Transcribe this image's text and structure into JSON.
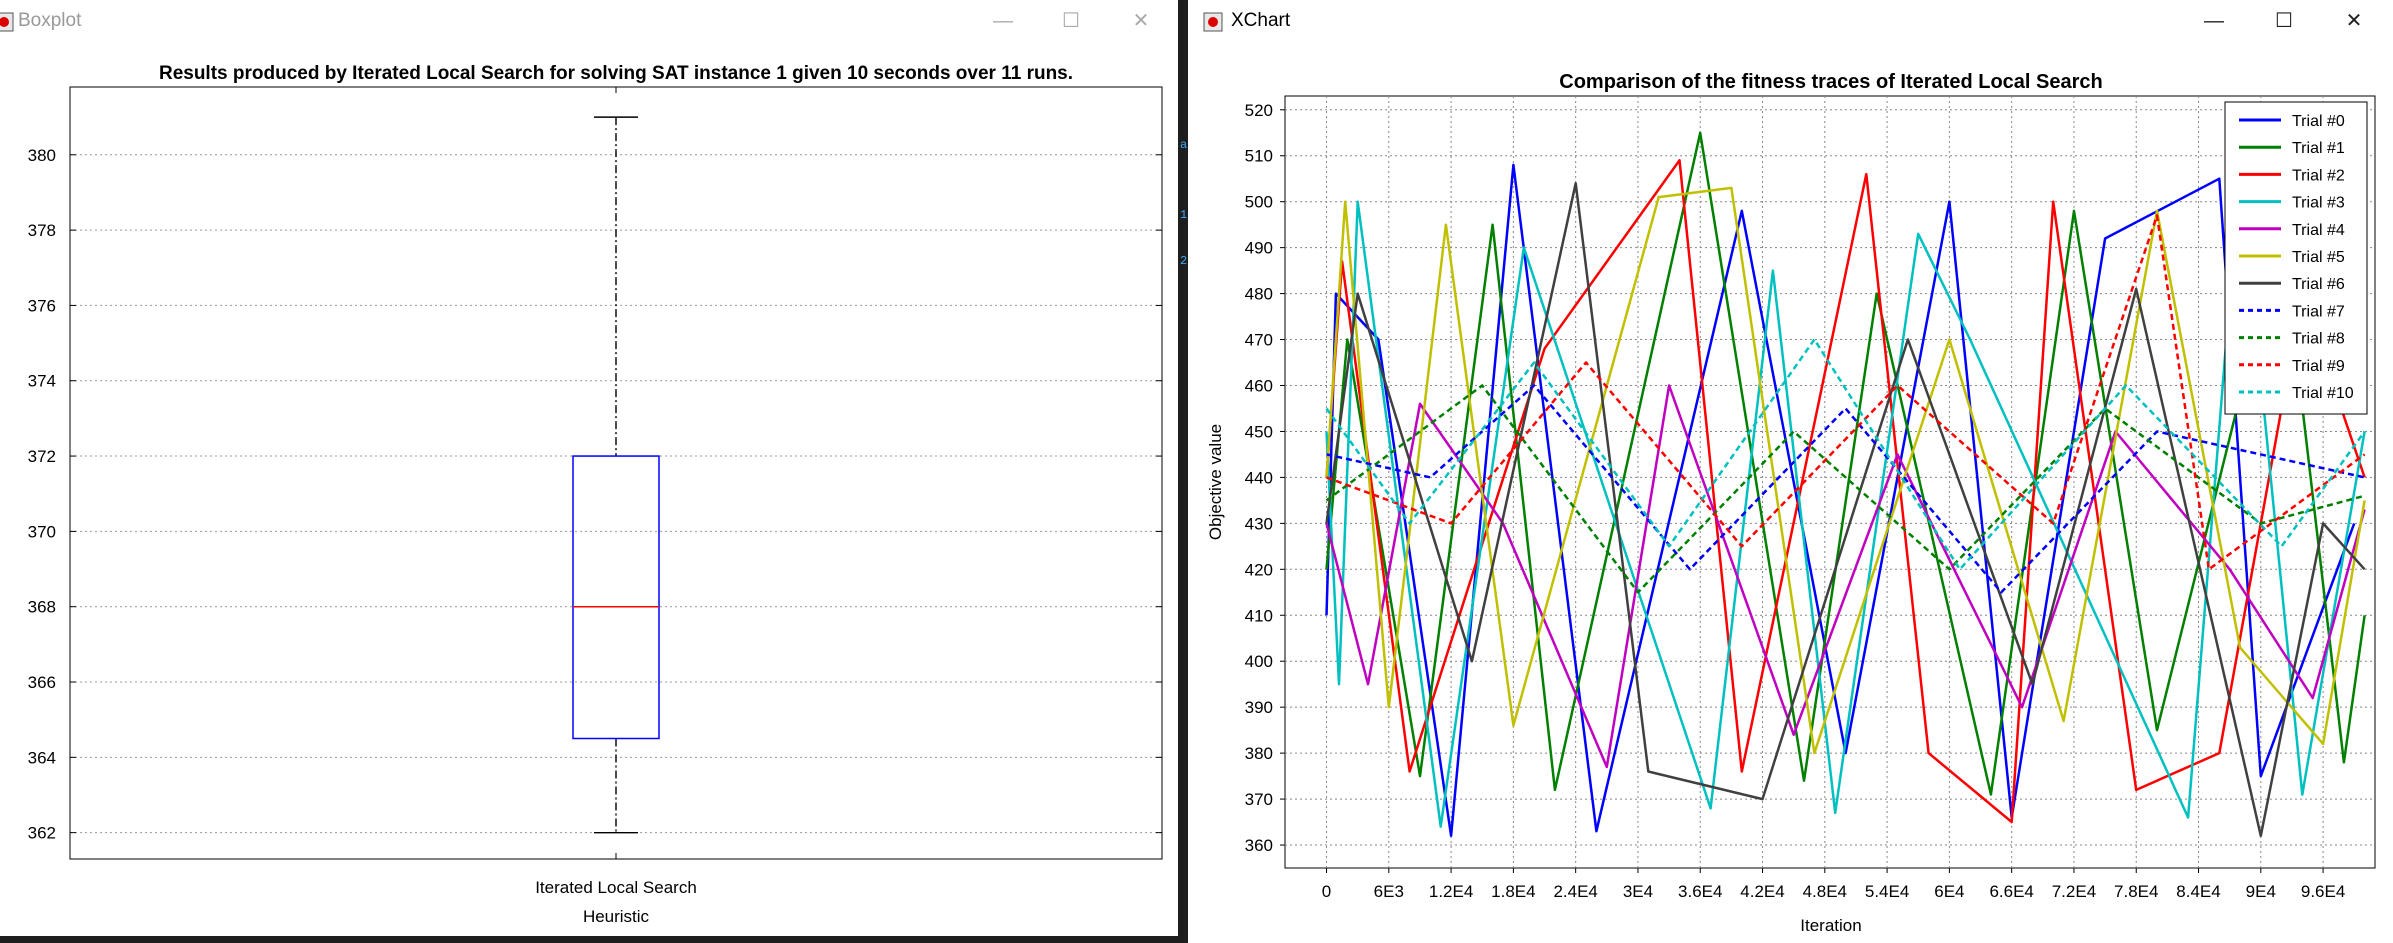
{
  "boxplot_window": {
    "title": "Boxplot",
    "controls": {
      "minimize": "—",
      "maximize": "☐",
      "close": "✕"
    }
  },
  "xchart_window": {
    "title": "XChart",
    "controls": {
      "minimize": "—",
      "maximize": "☐",
      "close": "✕"
    }
  },
  "gutter": [
    "a",
    "1",
    "2"
  ],
  "colors": {
    "trial0": "#0000ff",
    "trial1": "#008000",
    "trial2": "#ff0000",
    "trial3": "#00c0c0",
    "trial4": "#c000c0",
    "trial5": "#c0c000",
    "trial6": "#404040",
    "box": "#0000ff",
    "median": "#ff0000",
    "whisker": "#000000"
  },
  "chart_data": [
    {
      "type": "box",
      "title": "Results produced by Iterated Local Search for solving SAT instance 1 given 10 seconds over 11 runs.",
      "xlabel": "Heuristic",
      "ylabel": "",
      "categories": [
        "Iterated Local Search"
      ],
      "stats": {
        "min": 362,
        "q1": 364.5,
        "median": 368,
        "q3": 372,
        "max": 381
      },
      "ylim": [
        361.3,
        381.8
      ],
      "yticks": [
        "362",
        "364",
        "366",
        "368",
        "370",
        "372",
        "374",
        "376",
        "378",
        "380"
      ],
      "grid": true
    },
    {
      "type": "line",
      "title": "Comparison of the fitness traces of Iterated Local Search",
      "xlabel": "Iteration",
      "ylabel": "Objective value",
      "xlim": [
        -4000,
        101000
      ],
      "ylim": [
        355,
        523
      ],
      "xticks": [
        {
          "v": 0,
          "label": "0"
        },
        {
          "v": 6000,
          "label": "6E3"
        },
        {
          "v": 12000,
          "label": "1.2E4"
        },
        {
          "v": 18000,
          "label": "1.8E4"
        },
        {
          "v": 24000,
          "label": "2.4E4"
        },
        {
          "v": 30000,
          "label": "3E4"
        },
        {
          "v": 36000,
          "label": "3.6E4"
        },
        {
          "v": 42000,
          "label": "4.2E4"
        },
        {
          "v": 48000,
          "label": "4.8E4"
        },
        {
          "v": 54000,
          "label": "5.4E4"
        },
        {
          "v": 60000,
          "label": "6E4"
        },
        {
          "v": 66000,
          "label": "6.6E4"
        },
        {
          "v": 72000,
          "label": "7.2E4"
        },
        {
          "v": 78000,
          "label": "7.8E4"
        },
        {
          "v": 84000,
          "label": "8.4E4"
        },
        {
          "v": 90000,
          "label": "9E4"
        },
        {
          "v": 96000,
          "label": "9.6E4"
        }
      ],
      "yticks": [
        360,
        370,
        380,
        390,
        400,
        410,
        420,
        430,
        440,
        450,
        460,
        470,
        480,
        490,
        500,
        510,
        520
      ],
      "grid": true,
      "legend_position": "top-right",
      "series": [
        {
          "name": "Trial #0",
          "color": "#0000ff",
          "dash": false,
          "points": [
            [
              0,
              410
            ],
            [
              900,
              480
            ],
            [
              5000,
              470
            ],
            [
              12000,
              362
            ],
            [
              18000,
              508
            ],
            [
              26000,
              363
            ],
            [
              40000,
              498
            ],
            [
              50000,
              380
            ],
            [
              60000,
              500
            ],
            [
              66000,
              366
            ],
            [
              75000,
              492
            ],
            [
              86000,
              505
            ],
            [
              90000,
              375
            ],
            [
              99000,
              430
            ]
          ]
        },
        {
          "name": "Trial #1",
          "color": "#008000",
          "dash": false,
          "points": [
            [
              0,
              420
            ],
            [
              2000,
              470
            ],
            [
              9000,
              375
            ],
            [
              16000,
              495
            ],
            [
              22000,
              372
            ],
            [
              36000,
              515
            ],
            [
              46000,
              374
            ],
            [
              53000,
              480
            ],
            [
              64000,
              371
            ],
            [
              72000,
              498
            ],
            [
              80000,
              385
            ],
            [
              92000,
              494
            ],
            [
              98000,
              378
            ],
            [
              100000,
              410
            ]
          ]
        },
        {
          "name": "Trial #2",
          "color": "#ff0000",
          "dash": false,
          "points": [
            [
              0,
              440
            ],
            [
              1500,
              487
            ],
            [
              8000,
              376
            ],
            [
              21000,
              468
            ],
            [
              34000,
              509
            ],
            [
              40000,
              376
            ],
            [
              52000,
              506
            ],
            [
              58000,
              380
            ],
            [
              66000,
              365
            ],
            [
              70000,
              500
            ],
            [
              78000,
              372
            ],
            [
              86000,
              380
            ],
            [
              94000,
              480
            ],
            [
              100000,
              440
            ]
          ]
        },
        {
          "name": "Trial #3",
          "color": "#00c0c0",
          "dash": false,
          "points": [
            [
              0,
              450
            ],
            [
              1200,
              395
            ],
            [
              3000,
              500
            ],
            [
              11000,
              364
            ],
            [
              19000,
              490
            ],
            [
              37000,
              368
            ],
            [
              43000,
              485
            ],
            [
              49000,
              367
            ],
            [
              57000,
              493
            ],
            [
              62000,
              470
            ],
            [
              83000,
              366
            ],
            [
              88000,
              507
            ],
            [
              94000,
              371
            ],
            [
              100000,
              450
            ]
          ]
        },
        {
          "name": "Trial #4",
          "color": "#c000c0",
          "dash": false,
          "points": [
            [
              0,
              430
            ],
            [
              4000,
              395
            ],
            [
              9000,
              456
            ],
            [
              17000,
              430
            ],
            [
              27000,
              377
            ],
            [
              33000,
              460
            ],
            [
              45000,
              384
            ],
            [
              55000,
              445
            ],
            [
              67000,
              390
            ],
            [
              76000,
              450
            ],
            [
              87000,
              420
            ],
            [
              95000,
              392
            ],
            [
              100000,
              433
            ]
          ]
        },
        {
          "name": "Trial #5",
          "color": "#c0c000",
          "dash": false,
          "points": [
            [
              0,
              440
            ],
            [
              1800,
              500
            ],
            [
              6000,
              390
            ],
            [
              11500,
              495
            ],
            [
              18000,
              386
            ],
            [
              32000,
              501
            ],
            [
              39000,
              503
            ],
            [
              47000,
              380
            ],
            [
              60000,
              470
            ],
            [
              71000,
              387
            ],
            [
              80000,
              498
            ],
            [
              88000,
              403
            ],
            [
              96000,
              382
            ],
            [
              100000,
              435
            ]
          ]
        },
        {
          "name": "Trial #6",
          "color": "#404040",
          "dash": false,
          "points": [
            [
              0,
              430
            ],
            [
              3000,
              480
            ],
            [
              14000,
              400
            ],
            [
              24000,
              504
            ],
            [
              31000,
              376
            ],
            [
              42000,
              370
            ],
            [
              56000,
              470
            ],
            [
              68000,
              395
            ],
            [
              78000,
              481
            ],
            [
              90000,
              362
            ],
            [
              96000,
              430
            ],
            [
              100000,
              420
            ]
          ]
        },
        {
          "name": "Trial #7",
          "color": "#0000ff",
          "dash": true,
          "points": [
            [
              0,
              445
            ],
            [
              10000,
              440
            ],
            [
              20000,
              460
            ],
            [
              35000,
              420
            ],
            [
              50000,
              455
            ],
            [
              65000,
              415
            ],
            [
              80000,
              450
            ],
            [
              100000,
              440
            ]
          ]
        },
        {
          "name": "Trial #8",
          "color": "#008000",
          "dash": true,
          "points": [
            [
              0,
              435
            ],
            [
              15000,
              460
            ],
            [
              30000,
              415
            ],
            [
              45000,
              450
            ],
            [
              60000,
              420
            ],
            [
              75000,
              455
            ],
            [
              90000,
              430
            ],
            [
              100000,
              436
            ]
          ]
        },
        {
          "name": "Trial #9",
          "color": "#ff0000",
          "dash": true,
          "points": [
            [
              0,
              440
            ],
            [
              12000,
              430
            ],
            [
              25000,
              465
            ],
            [
              40000,
              425
            ],
            [
              55000,
              460
            ],
            [
              70000,
              430
            ],
            [
              80000,
              497
            ],
            [
              85000,
              420
            ],
            [
              100000,
              445
            ]
          ]
        },
        {
          "name": "Trial #10",
          "color": "#00c0c0",
          "dash": true,
          "points": [
            [
              0,
              455
            ],
            [
              8000,
              430
            ],
            [
              20000,
              465
            ],
            [
              33000,
              425
            ],
            [
              47000,
              470
            ],
            [
              61000,
              420
            ],
            [
              77000,
              460
            ],
            [
              92000,
              425
            ],
            [
              100000,
              450
            ]
          ]
        }
      ]
    }
  ]
}
